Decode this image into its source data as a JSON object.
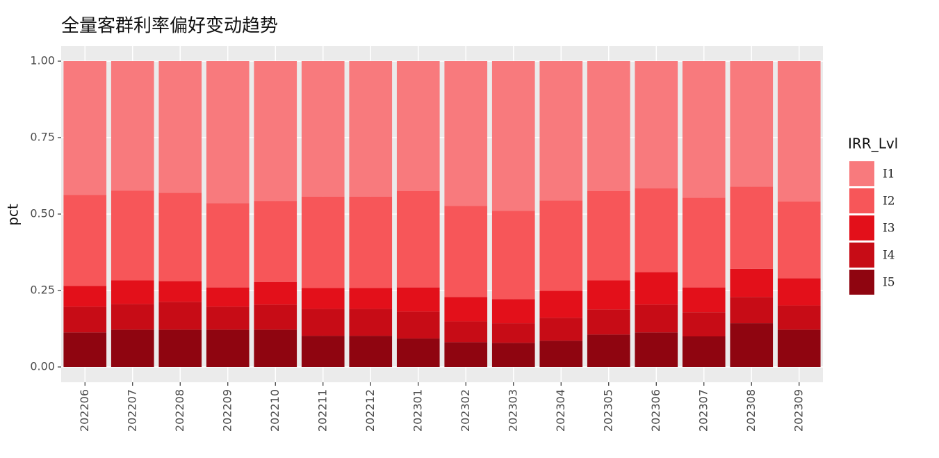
{
  "chart_data": {
    "type": "stacked_bar",
    "title": "全量客群利率偏好变动趋势",
    "y_label": "pct",
    "legend_title": "IRR_Lvl",
    "legend_position": "right",
    "categories": [
      "202206",
      "202207",
      "202208",
      "202209",
      "202210",
      "202211",
      "202212",
      "202301",
      "202302",
      "202303",
      "202304",
      "202305",
      "202306",
      "202307",
      "202308",
      "202309"
    ],
    "series": [
      {
        "name": "I1",
        "color": "#f87a7d",
        "values": [
          0.437,
          0.423,
          0.43,
          0.464,
          0.457,
          0.443,
          0.443,
          0.425,
          0.473,
          0.489,
          0.455,
          0.425,
          0.416,
          0.446,
          0.41,
          0.459
        ]
      },
      {
        "name": "I2",
        "color": "#f75659",
        "values": [
          0.298,
          0.294,
          0.289,
          0.276,
          0.265,
          0.299,
          0.299,
          0.315,
          0.298,
          0.289,
          0.296,
          0.292,
          0.274,
          0.294,
          0.269,
          0.251
        ]
      },
      {
        "name": "I3",
        "color": "#e3101a",
        "values": [
          0.068,
          0.077,
          0.068,
          0.063,
          0.074,
          0.068,
          0.068,
          0.079,
          0.08,
          0.079,
          0.088,
          0.095,
          0.106,
          0.081,
          0.092,
          0.089
        ]
      },
      {
        "name": "I4",
        "color": "#c70c16",
        "values": [
          0.084,
          0.084,
          0.091,
          0.075,
          0.082,
          0.088,
          0.088,
          0.088,
          0.068,
          0.064,
          0.075,
          0.082,
          0.091,
          0.079,
          0.086,
          0.079
        ]
      },
      {
        "name": "I5",
        "color": "#8f0510",
        "values": [
          0.113,
          0.122,
          0.122,
          0.122,
          0.122,
          0.102,
          0.102,
          0.093,
          0.081,
          0.079,
          0.086,
          0.106,
          0.113,
          0.1,
          0.143,
          0.122
        ]
      }
    ],
    "ylim": [
      -0.05,
      1.05
    ],
    "yticks": [
      {
        "value": 0,
        "label": "0.00"
      },
      0.25,
      {
        "value": 0.5,
        "label": "0.50"
      },
      0.75,
      {
        "value": 1,
        "label": "1.00"
      }
    ],
    "grid": true
  }
}
